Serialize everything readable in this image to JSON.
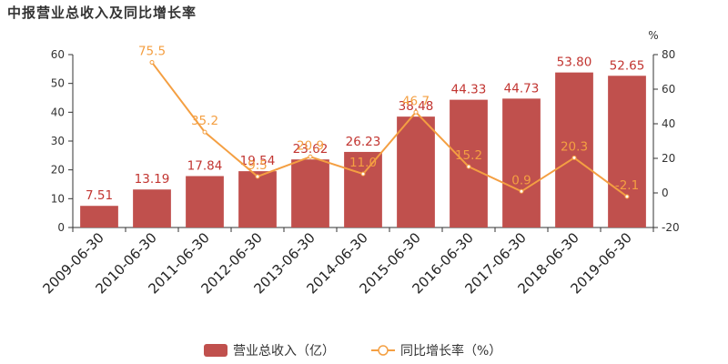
{
  "title": "中报营业总收入及同比增长率",
  "chart_data": {
    "type": "bar",
    "title": "中报营业总收入及同比增长率",
    "categories": [
      "2009-06-30",
      "2010-06-30",
      "2011-06-30",
      "2012-06-30",
      "2013-06-30",
      "2014-06-30",
      "2015-06-30",
      "2016-06-30",
      "2017-06-30",
      "2018-06-30",
      "2019-06-30"
    ],
    "series": [
      {
        "name": "营业总收入（亿）",
        "type": "bar",
        "axis": "left",
        "color": "#c0504d",
        "values": [
          7.51,
          13.19,
          17.84,
          19.54,
          23.62,
          26.23,
          38.48,
          44.33,
          44.73,
          53.8,
          52.65
        ],
        "labels": [
          "7.51",
          "13.19",
          "17.84",
          "19.54",
          "23.62",
          "26.23",
          "38.48",
          "44.33",
          "44.73",
          "53.80",
          "52.65"
        ]
      },
      {
        "name": "同比增长率（%）",
        "type": "line",
        "axis": "right",
        "color": "#f49f42",
        "values": [
          null,
          75.5,
          35.2,
          9.5,
          20.9,
          11.0,
          46.7,
          15.2,
          0.9,
          20.3,
          -2.1
        ],
        "labels": [
          "",
          "75.5",
          "35.2",
          "9.5",
          "20.9",
          "11.0",
          "46.7",
          "15.2",
          "0.9",
          "20.3",
          "-2.1"
        ]
      }
    ],
    "y_left": {
      "min": 0,
      "max": 60,
      "ticks": [
        "0",
        "10",
        "20",
        "30",
        "40",
        "50",
        "60"
      ]
    },
    "y_right": {
      "min": -20,
      "max": 80,
      "ticks": [
        "-20",
        "0",
        "20",
        "40",
        "60",
        "80"
      ],
      "unit": "%"
    },
    "legend_position": "bottom-center",
    "grid": false
  }
}
